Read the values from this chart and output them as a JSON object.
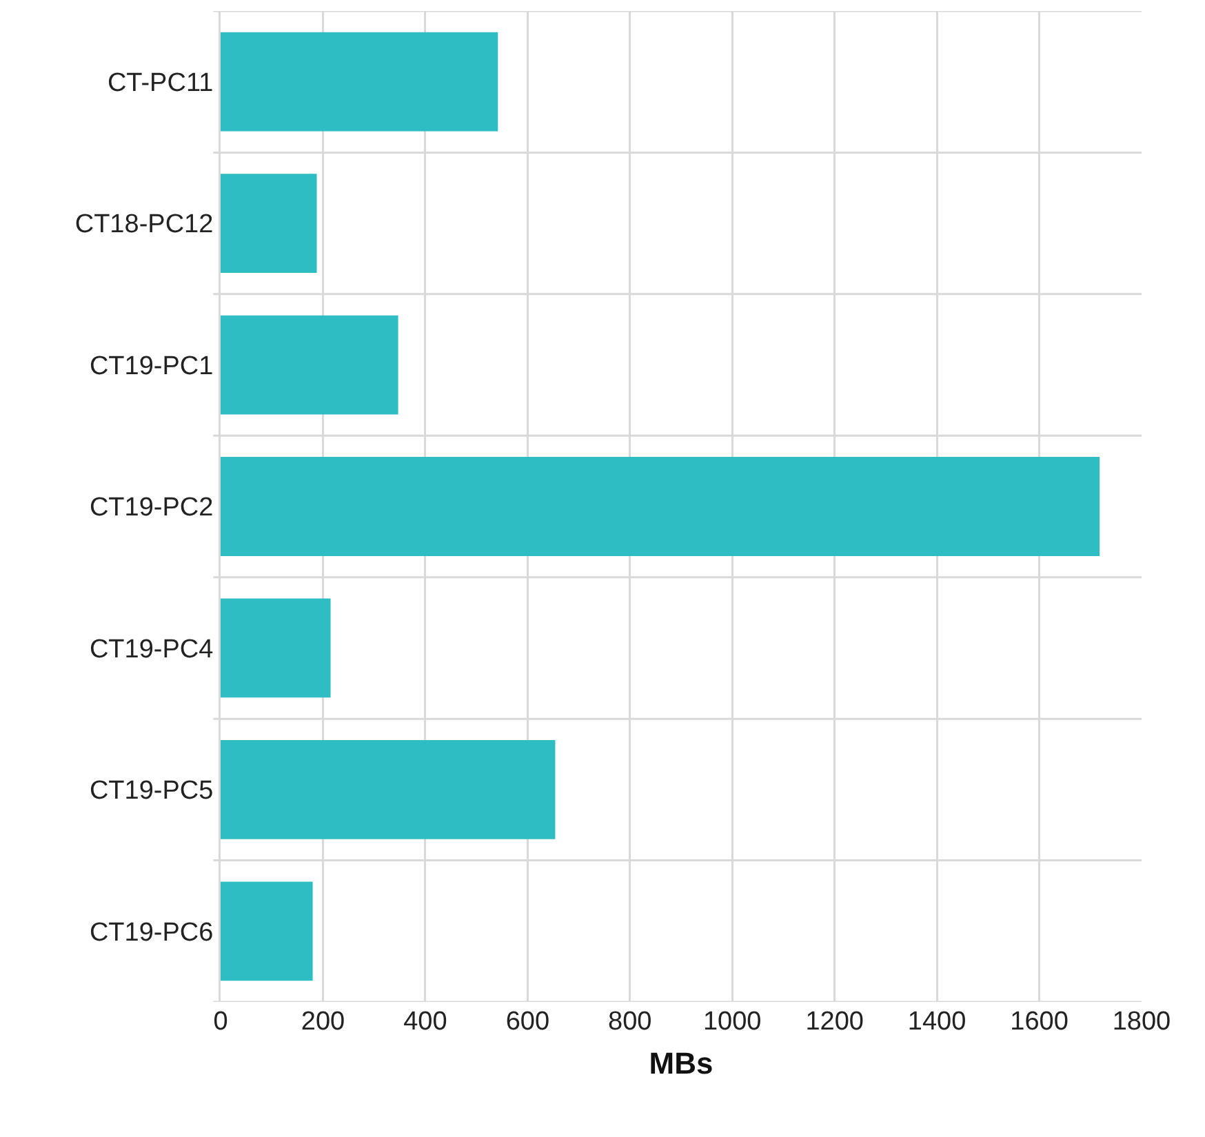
{
  "chart_data": {
    "type": "bar",
    "orientation": "horizontal",
    "xlabel": "MBs",
    "categories": [
      "CT-PC11",
      "CT18-PC12",
      "CT19-PC1",
      "CT19-PC2",
      "CT19-PC4",
      "CT19-PC5",
      "CT19-PC6"
    ],
    "values": [
      542,
      188,
      347,
      1718,
      215,
      654,
      180
    ],
    "color": "#2ebdc3",
    "xlim": [
      0,
      1800
    ],
    "xticks": [
      0,
      200,
      400,
      600,
      800,
      1000,
      1200,
      1400,
      1600,
      1800
    ],
    "grid": true
  }
}
